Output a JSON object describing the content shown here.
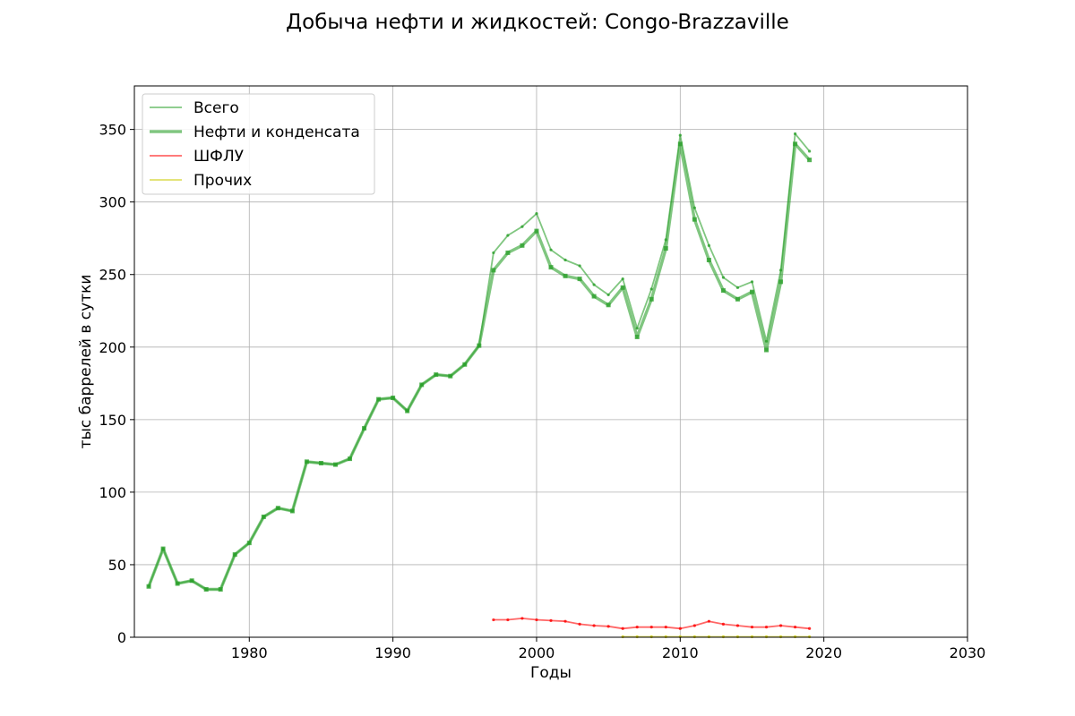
{
  "chart_data": {
    "type": "line",
    "title": "Добыча нефти и жидкостей: Congo-Brazzaville",
    "xlabel": "Годы",
    "ylabel": "тыс баррелей в сутки",
    "xlim": [
      1972,
      2030
    ],
    "ylim": [
      0,
      380
    ],
    "xticks": [
      1980,
      1990,
      2000,
      2010,
      2020,
      2030
    ],
    "yticks": [
      0,
      50,
      100,
      150,
      200,
      250,
      300,
      350
    ],
    "grid": true,
    "legend_position": "top-left",
    "series": [
      {
        "name": "Всего",
        "color": "#2ca02c",
        "style": "thin",
        "x": [
          1973,
          1974,
          1975,
          1976,
          1977,
          1978,
          1979,
          1980,
          1981,
          1982,
          1983,
          1984,
          1985,
          1986,
          1987,
          1988,
          1989,
          1990,
          1991,
          1992,
          1993,
          1994,
          1995,
          1996,
          1997,
          1998,
          1999,
          2000,
          2001,
          2002,
          2003,
          2004,
          2005,
          2006,
          2007,
          2008,
          2009,
          2010,
          2011,
          2012,
          2013,
          2014,
          2015,
          2016,
          2017,
          2018,
          2019
        ],
        "y": [
          35,
          61,
          37,
          39,
          33,
          33,
          57,
          65,
          83,
          89,
          87,
          121,
          120,
          119,
          123,
          144,
          164,
          165,
          156,
          174,
          181,
          180,
          188,
          201,
          265,
          277,
          283,
          292,
          267,
          260,
          256,
          243,
          236,
          247,
          213,
          240,
          274,
          346,
          296,
          270,
          248,
          241,
          245,
          204,
          253,
          347,
          335
        ]
      },
      {
        "name": "Нефти и конденсата",
        "color": "#2ca02c",
        "style": "thick",
        "x": [
          1973,
          1974,
          1975,
          1976,
          1977,
          1978,
          1979,
          1980,
          1981,
          1982,
          1983,
          1984,
          1985,
          1986,
          1987,
          1988,
          1989,
          1990,
          1991,
          1992,
          1993,
          1994,
          1995,
          1996,
          1997,
          1998,
          1999,
          2000,
          2001,
          2002,
          2003,
          2004,
          2005,
          2006,
          2007,
          2008,
          2009,
          2010,
          2011,
          2012,
          2013,
          2014,
          2015,
          2016,
          2017,
          2018,
          2019
        ],
        "y": [
          35,
          61,
          37,
          39,
          33,
          33,
          57,
          65,
          83,
          89,
          87,
          121,
          120,
          119,
          123,
          144,
          164,
          165,
          156,
          174,
          181,
          180,
          188,
          201,
          253,
          265,
          270,
          280,
          255,
          249,
          247,
          235,
          229,
          241,
          207,
          233,
          268,
          340,
          288,
          260,
          239,
          233,
          238,
          198,
          245,
          340,
          329
        ]
      },
      {
        "name": "ШФЛУ",
        "color": "#ff0000",
        "style": "thin",
        "x": [
          1997,
          1998,
          1999,
          2000,
          2001,
          2002,
          2003,
          2004,
          2005,
          2006,
          2007,
          2008,
          2009,
          2010,
          2011,
          2012,
          2013,
          2014,
          2015,
          2016,
          2017,
          2018,
          2019
        ],
        "y": [
          12,
          12,
          13,
          12,
          11.5,
          11,
          9,
          8,
          7.5,
          6,
          7,
          7,
          7,
          6,
          8,
          11,
          9,
          8,
          7,
          7,
          8,
          7,
          6
        ]
      },
      {
        "name": "Прочих",
        "color": "#cccc00",
        "style": "thin",
        "x": [
          2006,
          2007,
          2008,
          2009,
          2010,
          2011,
          2012,
          2013,
          2014,
          2015,
          2016,
          2017,
          2018,
          2019
        ],
        "y": [
          0.3,
          0.3,
          0.3,
          0.3,
          0.3,
          0.3,
          0.3,
          0.3,
          0.3,
          0.3,
          0.3,
          0.3,
          0.3,
          0.3
        ]
      }
    ]
  }
}
